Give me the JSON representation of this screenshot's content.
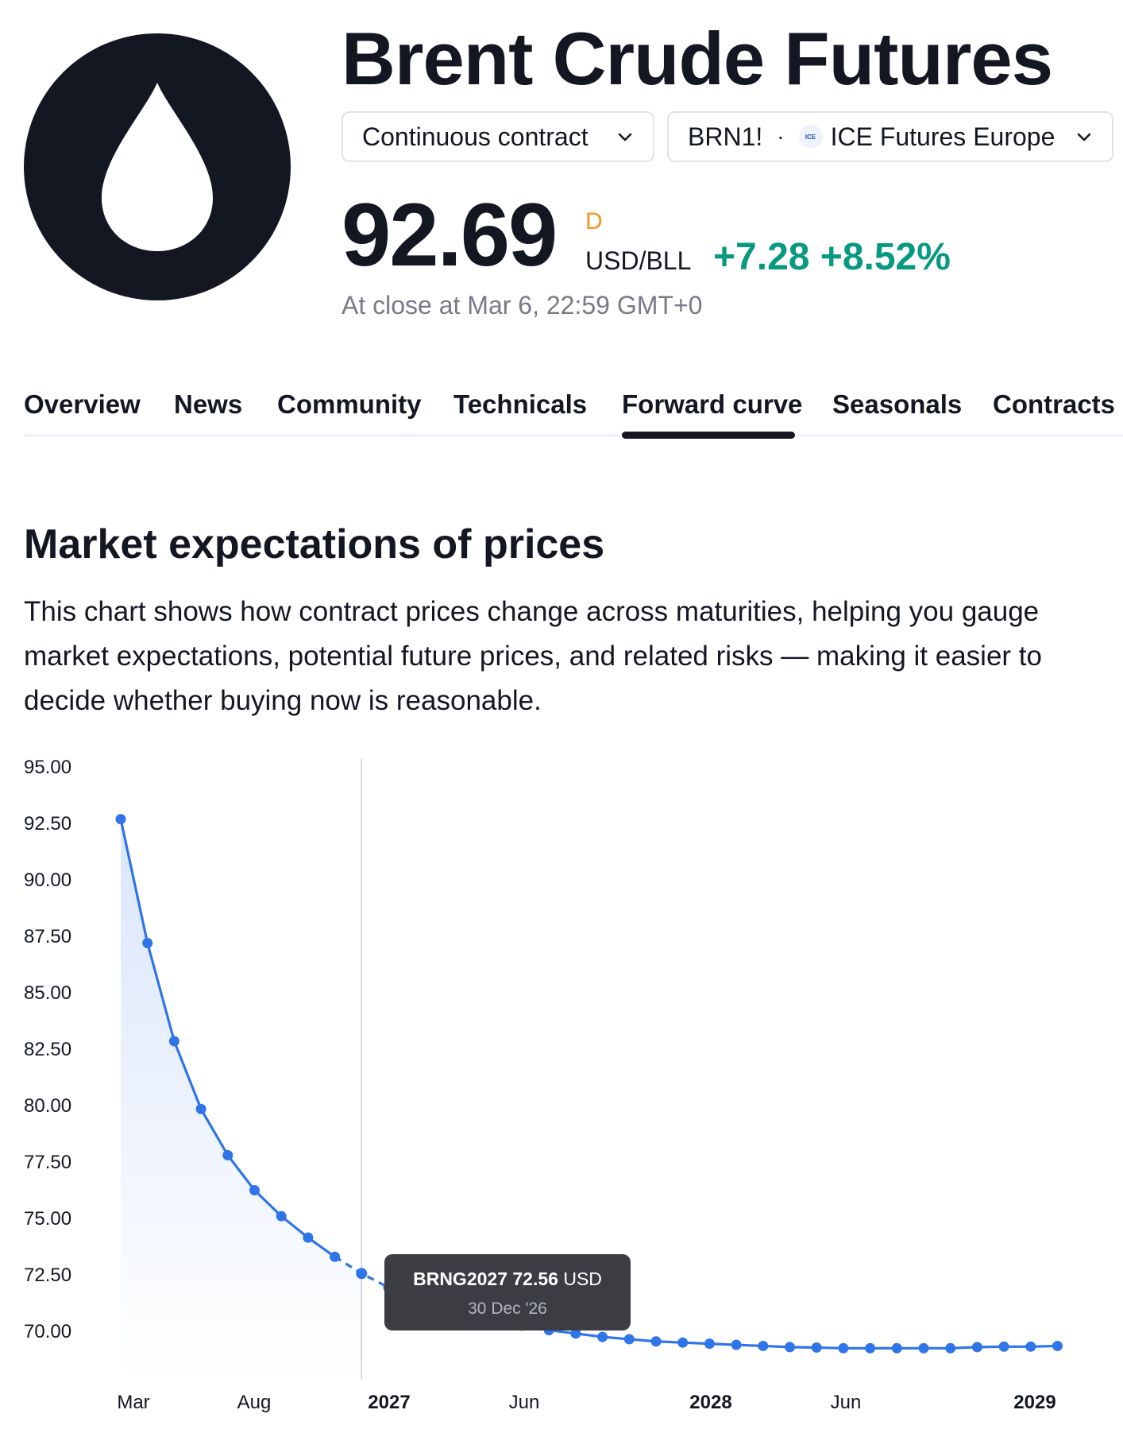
{
  "header": {
    "title": "Brent Crude Futures",
    "contract_dropdown": "Continuous contract",
    "symbol": "BRN1!",
    "exchange": "ICE Futures Europe",
    "exchange_icon_text": "ICE",
    "price": "92.69",
    "price_flag": "D",
    "unit": "USD/BLL",
    "change": "+7.28",
    "change_pct": "+8.52%",
    "close_time": "At close at Mar 6, 22:59 GMT+0"
  },
  "tabs": [
    "Overview",
    "News",
    "Community",
    "Technicals",
    "Forward curve",
    "Seasonals",
    "Contracts"
  ],
  "active_tab": "Forward curve",
  "section": {
    "title": "Market expectations of prices",
    "description": "This chart shows how contract prices change across maturities, helping you gauge market expectations, potential future prices, and related risks — making it easier to decide whether buying now is reasonable."
  },
  "tooltip": {
    "symbol": "BRNG2027",
    "price": "72.56",
    "unit": "USD",
    "date": "30 Dec '26"
  },
  "colors": {
    "accent": "#2f74e8",
    "positive": "#089981",
    "flag": "#f7931a"
  },
  "chart_data": {
    "type": "line",
    "ylim": [
      68.5,
      95
    ],
    "yticks": [
      "95.00",
      "92.50",
      "90.00",
      "87.50",
      "85.00",
      "82.50",
      "80.00",
      "77.50",
      "75.00",
      "72.50",
      "70.00"
    ],
    "xticks": [
      {
        "label": "Mar",
        "bold": false
      },
      {
        "label": "Aug",
        "bold": false
      },
      {
        "label": "2027",
        "bold": true
      },
      {
        "label": "Jun",
        "bold": false
      },
      {
        "label": "2028",
        "bold": true
      },
      {
        "label": "Jun",
        "bold": false
      },
      {
        "label": "2029",
        "bold": true
      }
    ],
    "values": [
      92.69,
      87.2,
      82.85,
      79.85,
      77.8,
      76.25,
      75.1,
      74.15,
      73.3,
      72.56,
      71.95,
      71.45,
      71.05,
      70.75,
      70.5,
      70.25,
      70.05,
      69.9,
      69.75,
      69.65,
      69.55,
      69.5,
      69.45,
      69.4,
      69.35,
      69.3,
      69.28,
      69.25,
      69.25,
      69.25,
      69.25,
      69.25,
      69.3,
      69.32,
      69.32,
      69.35
    ],
    "highlight_index": 9
  }
}
